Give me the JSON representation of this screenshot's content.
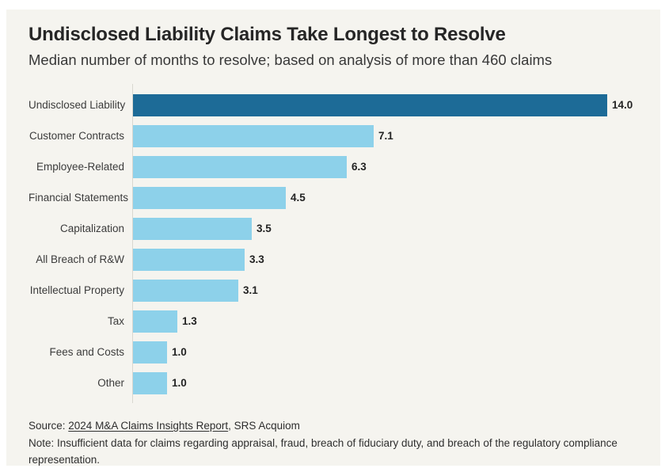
{
  "header": {
    "title": "Undisclosed Liability Claims Take Longest to Resolve",
    "subtitle": "Median number of months to resolve; based on analysis of more than 460 claims"
  },
  "chart_data": {
    "type": "bar",
    "orientation": "horizontal",
    "title": "Undisclosed Liability Claims Take Longest to Resolve",
    "subtitle": "Median number of months to resolve; based on analysis of more than 460 claims",
    "xlabel": "",
    "ylabel": "",
    "xlim": [
      0,
      14.6
    ],
    "grid": false,
    "legend": false,
    "categories": [
      "Undisclosed Liability",
      "Customer Contracts",
      "Employee-Related",
      "Financial Statements",
      "Capitalization",
      "All Breach of R&W",
      "Intellectual Property",
      "Tax",
      "Fees and Costs",
      "Other"
    ],
    "values": [
      14.0,
      7.1,
      6.3,
      4.5,
      3.5,
      3.3,
      3.1,
      1.3,
      1.0,
      1.0
    ],
    "value_labels": [
      "14.0",
      "7.1",
      "6.3",
      "4.5",
      "3.5",
      "3.3",
      "3.1",
      "1.3",
      "1.0",
      "1.0"
    ],
    "highlight_index": 0,
    "colors": {
      "highlight_bar": "#1d6b97",
      "default_bar": "#8dd1ea",
      "background": "#f5f4ef",
      "axis_line": "#d9d8d0",
      "value_text": "#232323"
    }
  },
  "footer": {
    "source_prefix": "Source: ",
    "source_link": "2024 M&A Claims Insights Report",
    "source_suffix": ", SRS Acquiom",
    "note": "Note: Insufficient data for claims regarding appraisal, fraud, breach of fiduciary duty, and breach of the regulatory compliance representation."
  }
}
